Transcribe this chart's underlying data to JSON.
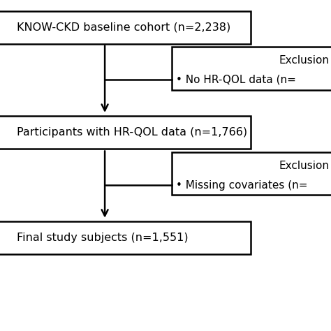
{
  "box1_text": "KNOW-CKD baseline cohort (n=2,238)",
  "box2_text": "Participants with HR-QOL data (n=1,766)",
  "box3_text": "Final study subjects (n=1,551)",
  "excl1_title": "Exclusion",
  "excl1_bullet": "• No HR-QOL data (n=",
  "excl2_title": "Exclusion",
  "excl2_bullet": "• Missing covariates (n=",
  "bg_color": "#ffffff",
  "box_edgecolor": "#000000",
  "text_color": "#000000",
  "fontsize_main": 11.5,
  "fontsize_excl": 11.0,
  "lw": 1.8
}
